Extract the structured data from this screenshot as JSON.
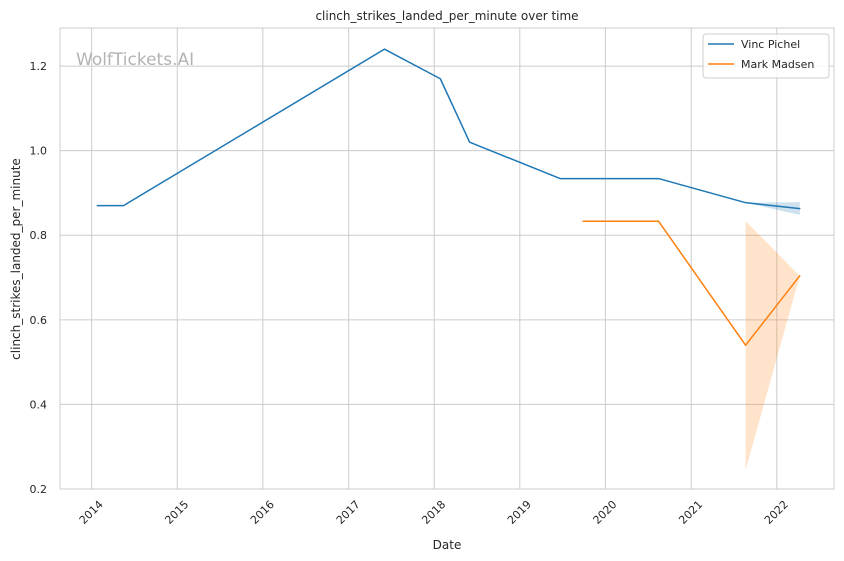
{
  "chart_data": {
    "type": "line",
    "title": "clinch_strikes_landed_per_minute over time",
    "xlabel": "Date",
    "ylabel": "clinch_strikes_landed_per_minute",
    "watermark": "WolfTickets.AI",
    "x_ticks": [
      "2014",
      "2015",
      "2016",
      "2017",
      "2018",
      "2019",
      "2020",
      "2021",
      "2022"
    ],
    "y_ticks": [
      "0.2",
      "0.4",
      "0.6",
      "0.8",
      "1.0",
      "1.2"
    ],
    "xlim": [
      "2013-08-19",
      "2022-09-02"
    ],
    "ylim": [
      0.2,
      1.29
    ],
    "grid": true,
    "legend_position": "top-right",
    "series": [
      {
        "name": "Vinc Pichel",
        "color": "#1f77b4",
        "band_color": "#1f77b4",
        "x": [
          "2014-01-25",
          "2014-05-17",
          "2017-06-03",
          "2018-01-27",
          "2018-06-01",
          "2019-06-22",
          "2020-08-15",
          "2021-08-21",
          "2022-04-09"
        ],
        "values": [
          0.87,
          0.87,
          1.24,
          1.17,
          1.02,
          0.934,
          0.934,
          0.877,
          0.863
        ],
        "band": {
          "x": [
            "2021-08-21",
            "2022-04-09"
          ],
          "lower": [
            0.877,
            0.848
          ],
          "upper": [
            0.877,
            0.878
          ]
        }
      },
      {
        "name": "Mark Madsen",
        "color": "#ff7f0e",
        "band_color": "#ff7f0e",
        "x": [
          "2019-09-28",
          "2020-08-15",
          "2021-08-21",
          "2022-04-09"
        ],
        "values": [
          0.833,
          0.833,
          0.54,
          0.704
        ],
        "band": {
          "x": [
            "2021-08-21",
            "2022-04-09"
          ],
          "lower": [
            0.245,
            0.704
          ],
          "upper": [
            0.833,
            0.704
          ]
        }
      }
    ]
  }
}
